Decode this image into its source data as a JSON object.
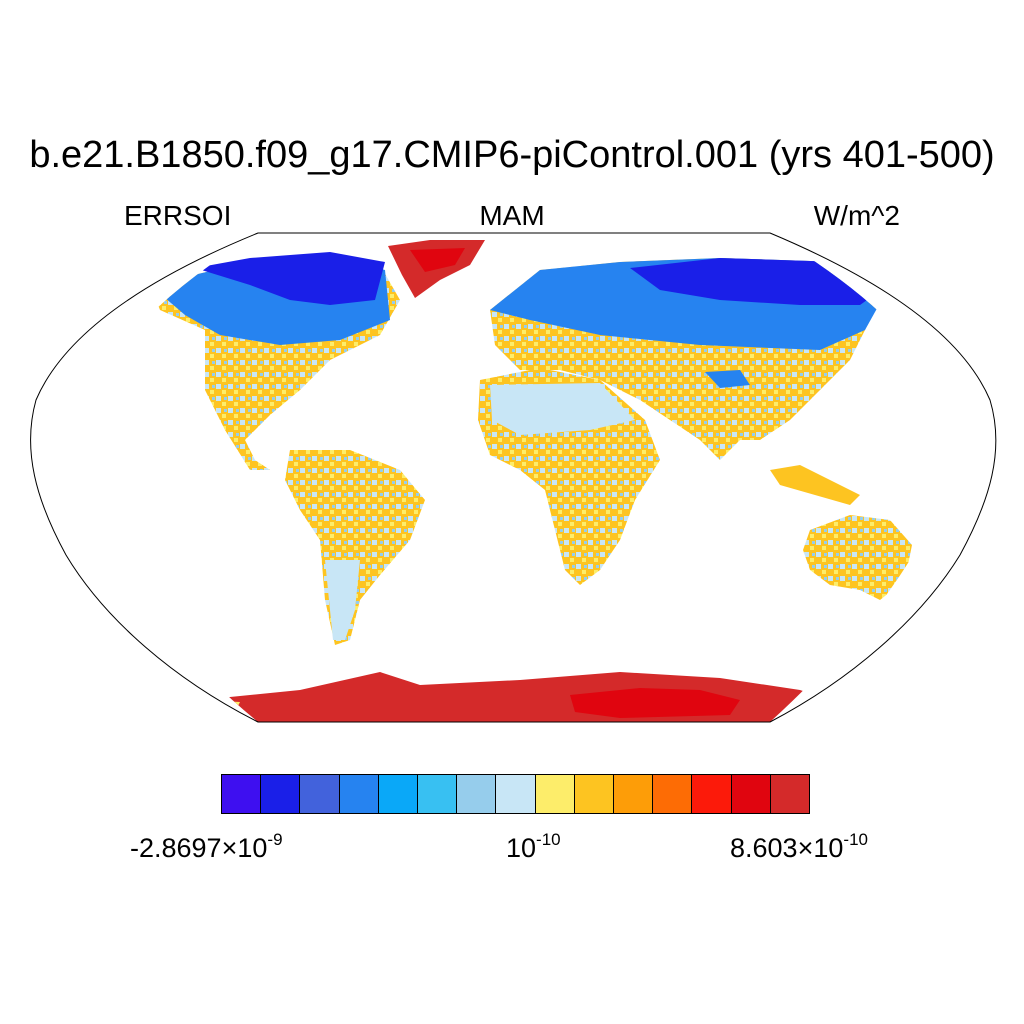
{
  "figure": {
    "title": "b.e21.B1850.f09_g17.CMIP6-piControl.001 (yrs 401-500)",
    "left_label": "ERRSOI",
    "center_label": "MAM",
    "right_label": "W/m^2"
  },
  "colorbar": {
    "colors": [
      "#3e0ff0",
      "#1a1fe8",
      "#4262dc",
      "#2683f0",
      "#0aa8f8",
      "#38c0f2",
      "#96cdec",
      "#c8e6f6",
      "#fded6a",
      "#fdc421",
      "#fd9d08",
      "#fd6c05",
      "#fc1a0a",
      "#e0050f",
      "#d42a2a"
    ],
    "min_label": {
      "mantissa": "-2.8697",
      "times": "×",
      "base": "10",
      "exponent": "-9"
    },
    "mid_label": {
      "base": "10",
      "exponent": "-10"
    },
    "max_label": {
      "mantissa": "8.603",
      "times": "×",
      "base": "10",
      "exponent": "-10"
    }
  },
  "map": {
    "projection": "robinson",
    "ocean_color": "#ffffff",
    "coastline_color": "#000000"
  }
}
